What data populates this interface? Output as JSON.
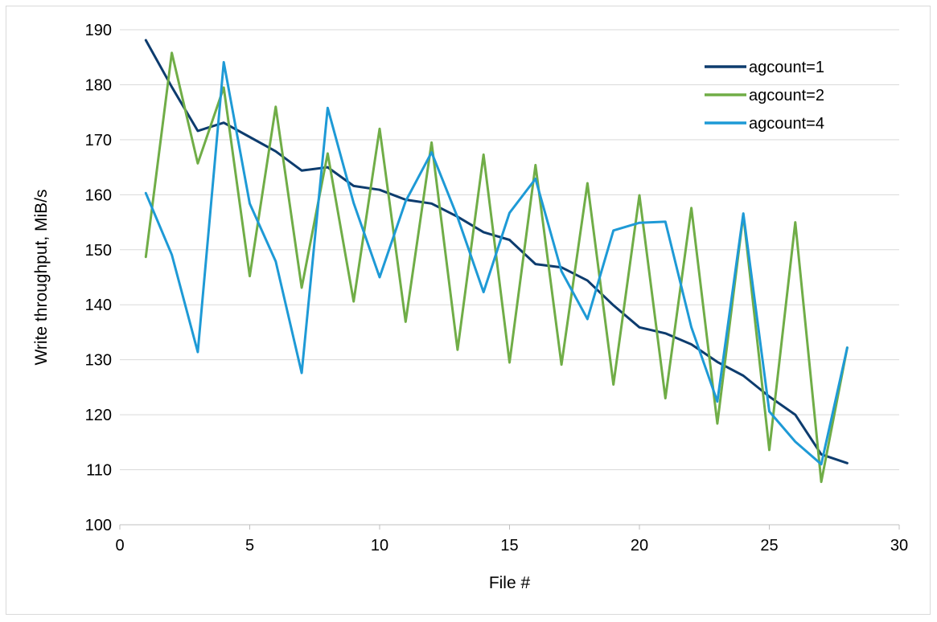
{
  "chart_data": {
    "type": "line",
    "title": "",
    "xlabel": "File #",
    "ylabel": "Write throughput, MiB/s",
    "xlim": [
      0,
      30
    ],
    "ylim": [
      100,
      190
    ],
    "x_ticks": [
      0,
      5,
      10,
      15,
      20,
      25,
      30
    ],
    "y_ticks": [
      100,
      110,
      120,
      130,
      140,
      150,
      160,
      170,
      180,
      190
    ],
    "x_tick_labels": [
      "0",
      "5",
      "10",
      "15",
      "20",
      "25",
      "30"
    ],
    "y_tick_labels": [
      "100",
      "110",
      "120",
      "130",
      "140",
      "150",
      "160",
      "170",
      "180",
      "190"
    ],
    "grid": "horizontal",
    "legend_position": "top-right",
    "x": [
      1,
      2,
      3,
      4,
      5,
      6,
      7,
      8,
      9,
      10,
      11,
      12,
      13,
      14,
      15,
      16,
      17,
      18,
      19,
      20,
      21,
      22,
      23,
      24,
      25,
      26,
      27,
      28
    ],
    "series": [
      {
        "name": "agcount=1",
        "color": "#0d3c6e",
        "values": [
          188.1,
          179.6,
          171.6,
          173.1,
          170.5,
          167.9,
          164.4,
          165.0,
          161.6,
          160.9,
          159.1,
          158.4,
          156.0,
          153.2,
          151.8,
          147.4,
          146.8,
          144.4,
          139.9,
          135.9,
          134.8,
          132.8,
          129.6,
          127.1,
          123.3,
          120.0,
          112.8,
          111.2
        ]
      },
      {
        "name": "agcount=2",
        "color": "#70ad47",
        "values": [
          148.7,
          185.8,
          165.7,
          179.5,
          145.2,
          176.0,
          143.1,
          167.5,
          140.6,
          172.0,
          136.9,
          169.5,
          131.8,
          167.3,
          129.5,
          165.4,
          129.1,
          162.1,
          125.5,
          159.9,
          123.0,
          157.6,
          118.4,
          156.4,
          113.6,
          155.0,
          107.8,
          132.2
        ]
      },
      {
        "name": "agcount=4",
        "color": "#1e9ad6",
        "values": [
          160.3,
          149.1,
          131.4,
          184.1,
          158.4,
          147.9,
          127.6,
          175.8,
          158.5,
          145.0,
          158.8,
          167.7,
          155.9,
          142.3,
          156.7,
          162.9,
          146.1,
          137.4,
          153.5,
          154.9,
          155.1,
          135.9,
          122.4,
          156.6,
          120.6,
          115.1,
          111.0,
          132.2
        ]
      }
    ]
  }
}
